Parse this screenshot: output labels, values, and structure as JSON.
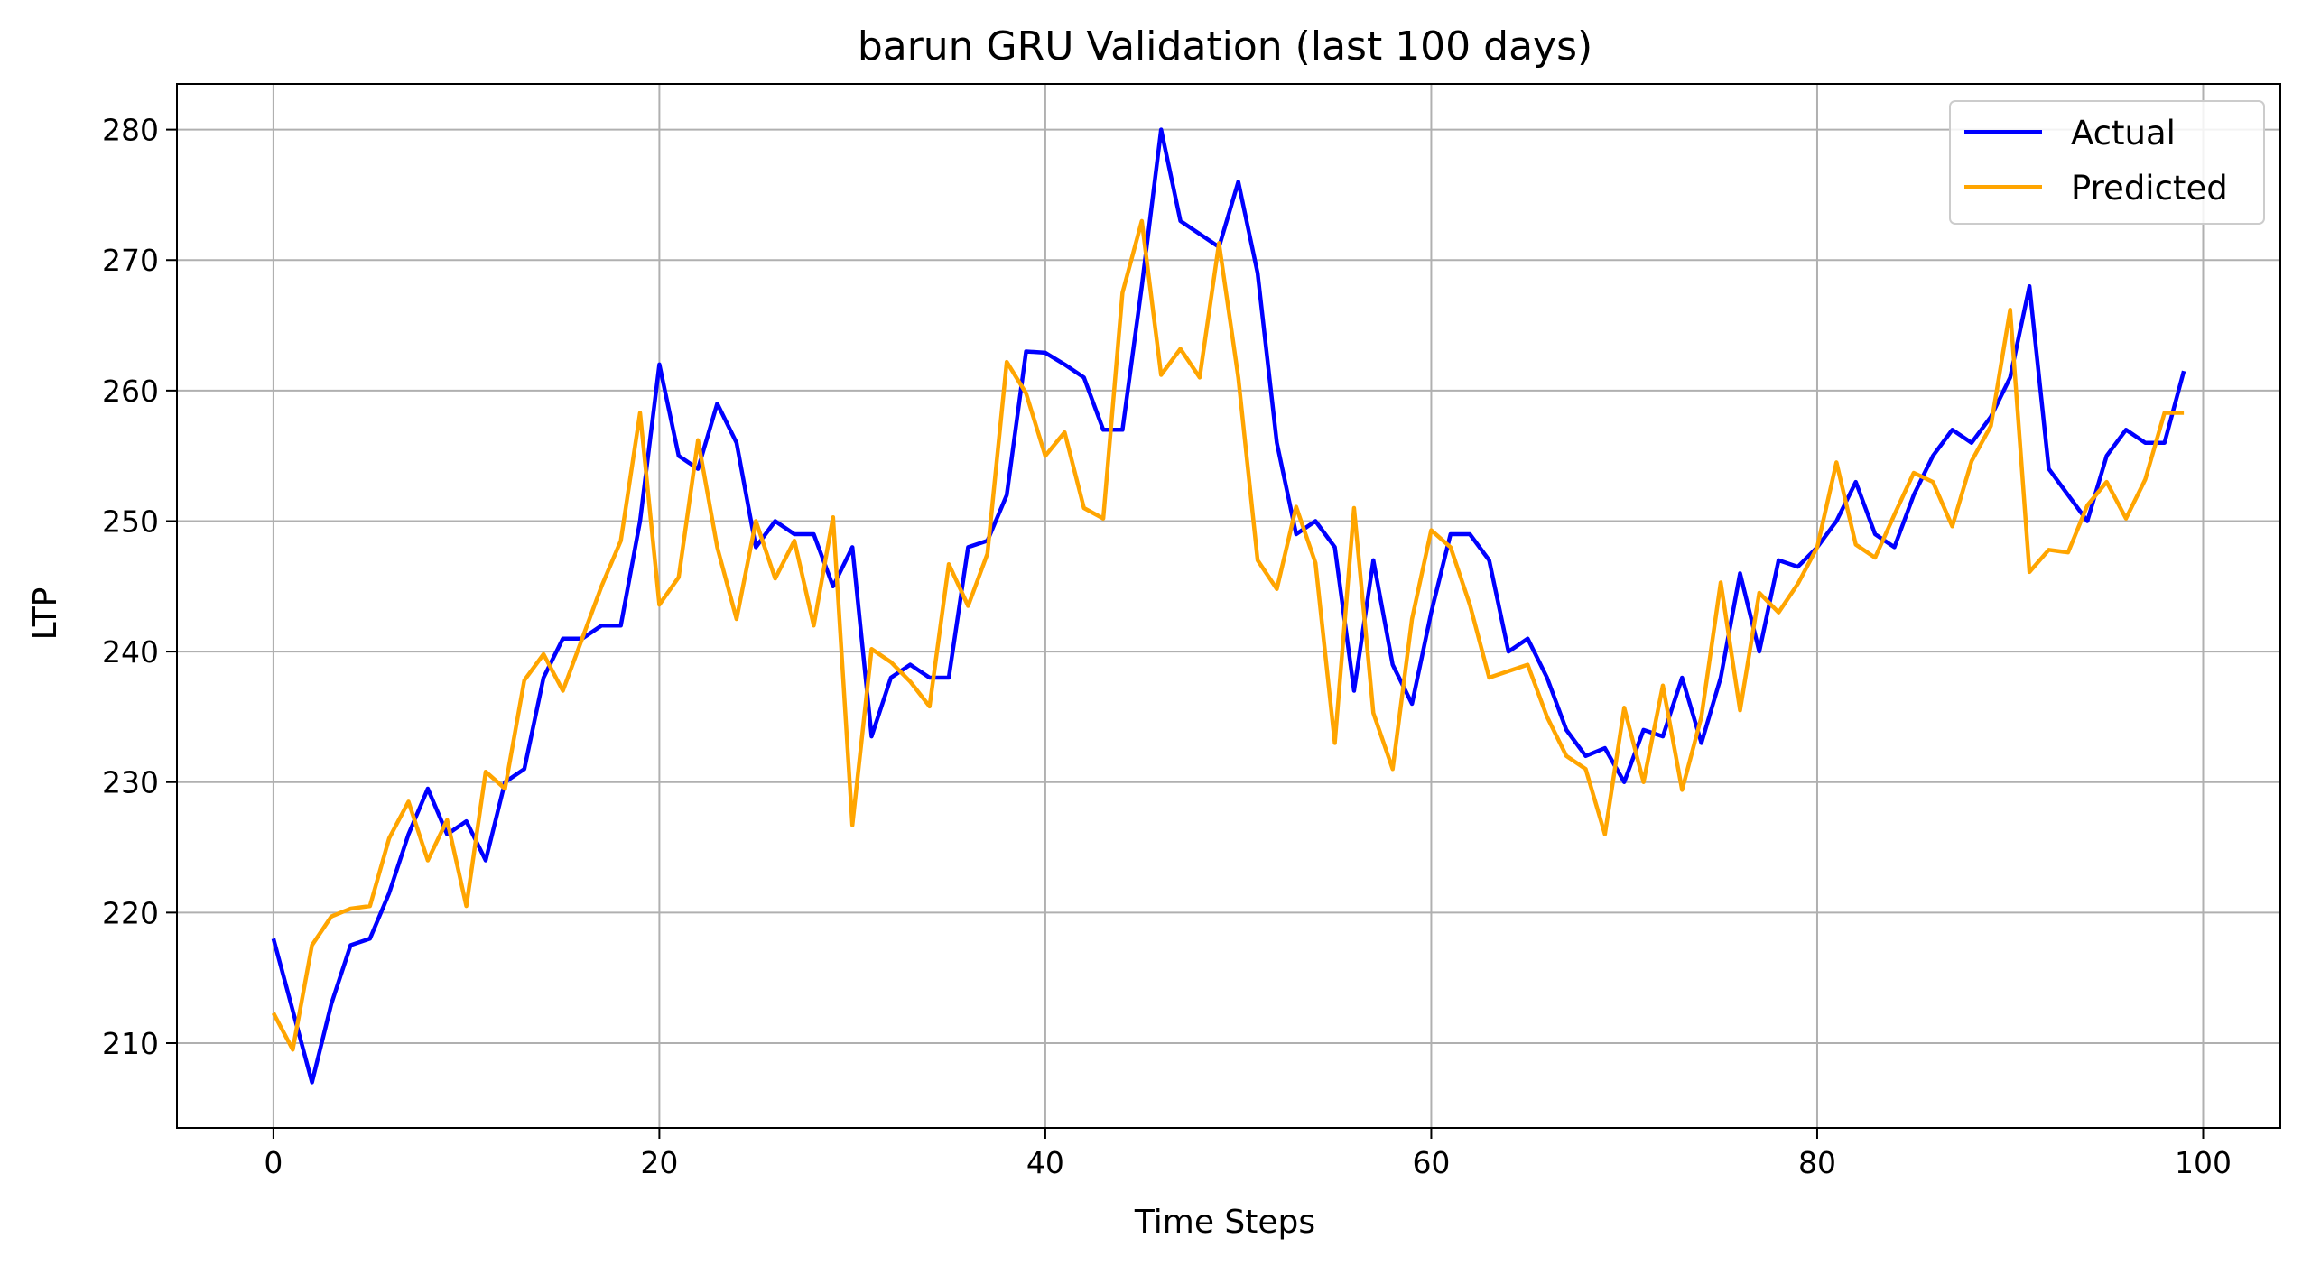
{
  "chart_data": {
    "type": "line",
    "title": "barun GRU Validation (last 100 days)",
    "xlabel": "Time Steps",
    "ylabel": "LTP",
    "xlim": [
      -5,
      104
    ],
    "ylim": [
      203.5,
      283.5
    ],
    "xticks": [
      0,
      20,
      40,
      60,
      80,
      100
    ],
    "yticks": [
      210,
      220,
      230,
      240,
      250,
      260,
      270,
      280
    ],
    "grid": true,
    "legend": "top-right",
    "series": [
      {
        "name": "Actual",
        "color": "#0000ff",
        "values": [
          218.0,
          212.5,
          207.0,
          213.0,
          217.5,
          218.0,
          221.5,
          226.0,
          229.5,
          226.0,
          227.0,
          224.0,
          230.0,
          231.0,
          238.0,
          241.0,
          241.0,
          242.0,
          242.0,
          250.0,
          262.0,
          255.0,
          254.0,
          259.0,
          256.0,
          248.0,
          250.0,
          249.0,
          249.0,
          245.0,
          248.0,
          233.5,
          238.0,
          239.0,
          238.0,
          238.0,
          248.0,
          248.5,
          252.0,
          263.0,
          262.9,
          262.0,
          261.0,
          257.0,
          257.0,
          268.0,
          280.0,
          273.0,
          272.0,
          271.0,
          276.0,
          269.0,
          256.0,
          249.0,
          250.0,
          248.0,
          237.0,
          247.0,
          239.0,
          236.0,
          243.0,
          249.0,
          249.0,
          247.0,
          240.0,
          241.0,
          238.0,
          234.0,
          232.0,
          232.6,
          230.0,
          234.0,
          233.5,
          238.0,
          233.0,
          238.0,
          246.0,
          240.0,
          247.0,
          246.5,
          248.0,
          250.0,
          253.0,
          249.0,
          248.0,
          252.0,
          255.0,
          257.0,
          256.0,
          258.0,
          261.0,
          268.0,
          254.0,
          252.0,
          250.0,
          255.0,
          257.0,
          256.0,
          256.0,
          261.5
        ]
      },
      {
        "name": "Predicted",
        "color": "#ffa500",
        "values": [
          212.3,
          209.5,
          217.5,
          219.7,
          220.3,
          220.5,
          225.7,
          228.5,
          224.0,
          227.1,
          220.5,
          230.8,
          229.5,
          237.8,
          239.8,
          237.0,
          241.0,
          245.0,
          248.5,
          258.3,
          243.6,
          245.7,
          256.2,
          248.0,
          242.5,
          250.0,
          245.6,
          248.5,
          242.0,
          250.3,
          226.7,
          240.2,
          239.2,
          237.7,
          235.8,
          246.7,
          243.5,
          247.5,
          262.2,
          259.8,
          255.0,
          256.8,
          251.0,
          250.2,
          267.5,
          273.0,
          261.2,
          263.2,
          261.0,
          271.3,
          261.0,
          247.0,
          244.8,
          251.1,
          246.8,
          233.0,
          251.0,
          235.3,
          231.0,
          242.5,
          249.3,
          248.0,
          243.6,
          238.0,
          238.5,
          239.0,
          235.0,
          232.0,
          231.0,
          226.0,
          235.7,
          230.0,
          237.4,
          229.4,
          235.0,
          245.3,
          235.5,
          244.5,
          243.0,
          245.2,
          248.0,
          254.5,
          248.2,
          247.2,
          250.5,
          253.7,
          253.0,
          249.6,
          254.6,
          257.3,
          266.2,
          246.1,
          247.8,
          247.6,
          251.2,
          253.0,
          250.2,
          253.2,
          258.3,
          258.3
        ]
      }
    ]
  }
}
